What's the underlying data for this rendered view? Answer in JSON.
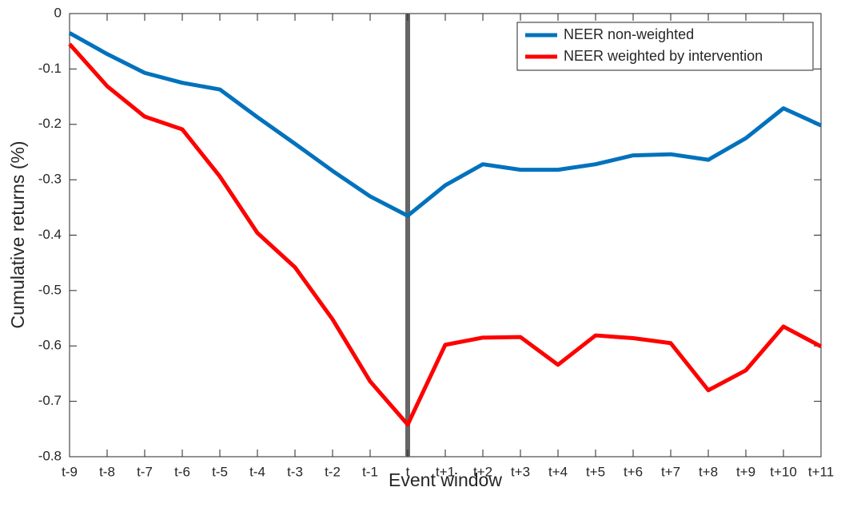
{
  "chart_data": {
    "type": "line",
    "xlabel": "Event window",
    "ylabel": "Cumulative returns (%)",
    "categories": [
      "t-9",
      "t-8",
      "t-7",
      "t-6",
      "t-5",
      "t-4",
      "t-3",
      "t-2",
      "t-1",
      "t",
      "t+1",
      "t+2",
      "t+3",
      "t+4",
      "t+5",
      "t+6",
      "t+7",
      "t+8",
      "t+9",
      "t+10",
      "t+11"
    ],
    "series": [
      {
        "name": "NEER non-weighted",
        "color": "#0072bd",
        "values": [
          -0.035,
          -0.073,
          -0.107,
          -0.125,
          -0.137,
          -0.187,
          -0.235,
          -0.284,
          -0.33,
          -0.365,
          -0.31,
          -0.272,
          -0.282,
          -0.282,
          -0.272,
          -0.256,
          -0.254,
          -0.264,
          -0.225,
          -0.171,
          -0.202
        ]
      },
      {
        "name": "NEER weighted by intervention",
        "color": "#ff0000",
        "values": [
          -0.055,
          -0.131,
          -0.186,
          -0.209,
          -0.294,
          -0.396,
          -0.458,
          -0.552,
          -0.664,
          -0.742,
          -0.598,
          -0.585,
          -0.584,
          -0.634,
          -0.581,
          -0.586,
          -0.595,
          -0.68,
          -0.644,
          -0.565,
          -0.601
        ]
      }
    ],
    "ylim": [
      -0.8,
      0
    ],
    "yticks": [
      0,
      -0.1,
      -0.2,
      -0.3,
      -0.4,
      -0.5,
      -0.6,
      -0.7,
      -0.8
    ],
    "grid": false,
    "legend": "upper right"
  }
}
